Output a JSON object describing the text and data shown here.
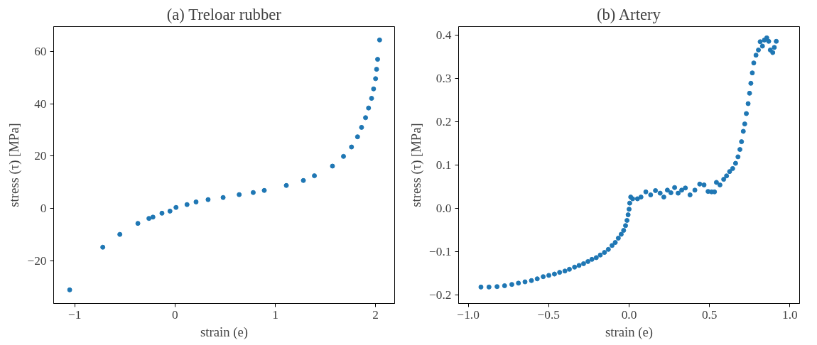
{
  "chart_data": [
    {
      "type": "scatter",
      "title": "(a) Treloar rubber",
      "xlabel": "strain (e)",
      "ylabel": "stress (τ) [MPa]",
      "marker": "circle",
      "grid": false,
      "xlim": [
        -1.21,
        2.19
      ],
      "ylim": [
        -36.3,
        69.5
      ],
      "xticks": [
        {
          "value": -1,
          "label": "−1"
        },
        0,
        1,
        2
      ],
      "yticks": [
        {
          "value": -20,
          "label": "−20"
        },
        0,
        20,
        40,
        60
      ],
      "series": [
        {
          "color": "#1f77b4",
          "x": [
            -1.05,
            -0.72,
            -0.55,
            -0.37,
            -0.26,
            -0.22,
            -0.13,
            -0.05,
            0.01,
            0.12,
            0.21,
            0.33,
            0.48,
            0.64,
            0.78,
            0.89,
            1.11,
            1.28,
            1.39,
            1.57,
            1.68,
            1.76,
            1.82,
            1.86,
            1.9,
            1.93,
            1.96,
            1.98,
            2.0,
            2.01,
            2.02,
            2.04
          ],
          "values": [
            -31.1,
            -14.8,
            -9.9,
            -5.7,
            -3.8,
            -3.3,
            -1.8,
            -1.0,
            0.4,
            1.5,
            2.5,
            3.4,
            4.2,
            5.3,
            6.1,
            6.9,
            8.8,
            10.7,
            12.5,
            16.2,
            19.9,
            23.5,
            27.4,
            31.0,
            34.7,
            38.4,
            42.1,
            45.7,
            49.6,
            53.2,
            57.0,
            64.4
          ]
        }
      ]
    },
    {
      "type": "scatter",
      "title": "(b) Artery",
      "xlabel": "strain (e)",
      "ylabel": "stress (τ) [MPa]",
      "marker": "circle",
      "grid": false,
      "xlim": [
        -1.06,
        1.06
      ],
      "ylim": [
        -0.22,
        0.42
      ],
      "xticks": [
        {
          "value": -1,
          "label": "−1.0"
        },
        {
          "value": -0.5,
          "label": "−0.5"
        },
        {
          "value": 0,
          "label": "0.0"
        },
        0.5,
        {
          "value": 1,
          "label": "1.0"
        }
      ],
      "yticks": [
        {
          "value": -0.2,
          "label": "−0.2"
        },
        {
          "value": -0.1,
          "label": "−0.1"
        },
        {
          "value": 0,
          "label": "0.0"
        },
        0.1,
        0.2,
        0.3,
        0.4
      ],
      "series": [
        {
          "color": "#1f77b4",
          "x": [
            -0.921,
            -0.871,
            -0.821,
            -0.774,
            -0.729,
            -0.688,
            -0.647,
            -0.607,
            -0.571,
            -0.534,
            -0.499,
            -0.464,
            -0.432,
            -0.399,
            -0.371,
            -0.339,
            -0.311,
            -0.283,
            -0.256,
            -0.231,
            -0.204,
            -0.179,
            -0.153,
            -0.129,
            -0.106,
            -0.086,
            -0.067,
            -0.049,
            -0.034,
            -0.022,
            -0.013,
            -0.006,
            0.0,
            0.004,
            0.01,
            0.022,
            0.052,
            0.074,
            0.104,
            0.134,
            0.164,
            0.193,
            0.216,
            0.238,
            0.26,
            0.283,
            0.305,
            0.327,
            0.35,
            0.379,
            0.409,
            0.439,
            0.466,
            0.491,
            0.513,
            0.531,
            0.543,
            0.565,
            0.588,
            0.606,
            0.625,
            0.644,
            0.662,
            0.677,
            0.689,
            0.699,
            0.71,
            0.719,
            0.729,
            0.74,
            0.749,
            0.757,
            0.766,
            0.775,
            0.789,
            0.804,
            0.815,
            0.829,
            0.841,
            0.856,
            0.868,
            0.878,
            0.893,
            0.903,
            0.915
          ],
          "values": [
            -0.182,
            -0.182,
            -0.181,
            -0.179,
            -0.176,
            -0.173,
            -0.17,
            -0.167,
            -0.163,
            -0.158,
            -0.155,
            -0.152,
            -0.148,
            -0.145,
            -0.141,
            -0.136,
            -0.132,
            -0.128,
            -0.123,
            -0.118,
            -0.114,
            -0.108,
            -0.102,
            -0.095,
            -0.086,
            -0.079,
            -0.069,
            -0.06,
            -0.051,
            -0.04,
            -0.028,
            -0.015,
            -0.002,
            0.012,
            0.026,
            0.022,
            0.022,
            0.026,
            0.038,
            0.031,
            0.041,
            0.035,
            0.026,
            0.042,
            0.036,
            0.048,
            0.035,
            0.042,
            0.047,
            0.031,
            0.042,
            0.056,
            0.054,
            0.039,
            0.038,
            0.038,
            0.06,
            0.054,
            0.067,
            0.075,
            0.085,
            0.092,
            0.104,
            0.119,
            0.136,
            0.154,
            0.178,
            0.195,
            0.219,
            0.242,
            0.266,
            0.289,
            0.313,
            0.336,
            0.354,
            0.366,
            0.385,
            0.375,
            0.389,
            0.394,
            0.386,
            0.366,
            0.36,
            0.372,
            0.386
          ]
        }
      ]
    }
  ]
}
